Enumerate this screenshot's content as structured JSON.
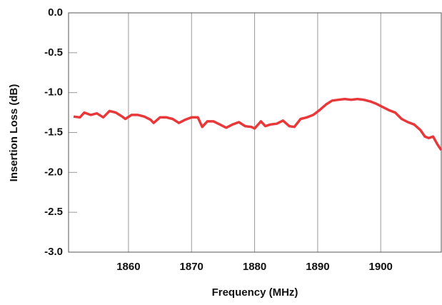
{
  "chart_data": {
    "type": "line",
    "x_label": "Frequency (MHz)",
    "y_label": "Insertion Loss (dB)",
    "xlim": [
      1850.5,
      1909.6
    ],
    "xticks": [
      1860,
      1870,
      1880,
      1890,
      1900
    ],
    "ylim": [
      -3,
      0
    ],
    "yticks": [
      {
        "value": 0,
        "label": "0.0"
      },
      -0.5,
      {
        "value": -1,
        "label": "-1.0"
      },
      -1.5,
      {
        "value": -2,
        "label": "-2.0"
      },
      -2.5,
      {
        "value": -3,
        "label": "-3.0"
      }
    ],
    "grid": "x",
    "series": [
      {
        "color": "#e8383a",
        "x": [
          1851.3,
          1852.3,
          1853,
          1854,
          1855,
          1856,
          1857,
          1858,
          1859,
          1859.5,
          1860.5,
          1861.5,
          1862.5,
          1863.5,
          1864,
          1865,
          1866,
          1867,
          1868,
          1869,
          1870,
          1871,
          1871.7,
          1872.5,
          1873.5,
          1874.5,
          1875.5,
          1876.5,
          1877.5,
          1878.5,
          1879.5,
          1880,
          1881,
          1881.7,
          1882.5,
          1883.5,
          1884.5,
          1885.5,
          1886.3,
          1887.3,
          1888.3,
          1889.3,
          1890.3,
          1891.3,
          1892.3,
          1893.3,
          1894.3,
          1895.3,
          1896.3,
          1897.3,
          1898.3,
          1899.3,
          1900.3,
          1901.3,
          1902.3,
          1903.3,
          1904.3,
          1905.3,
          1906.3,
          1907,
          1907.6,
          1908.3,
          1909,
          1909.6
        ],
        "values": [
          -1.3,
          -1.31,
          -1.25,
          -1.28,
          -1.26,
          -1.31,
          -1.23,
          -1.25,
          -1.3,
          -1.33,
          -1.28,
          -1.28,
          -1.3,
          -1.34,
          -1.38,
          -1.31,
          -1.31,
          -1.33,
          -1.38,
          -1.34,
          -1.31,
          -1.31,
          -1.43,
          -1.36,
          -1.36,
          -1.4,
          -1.44,
          -1.4,
          -1.37,
          -1.42,
          -1.43,
          -1.45,
          -1.36,
          -1.42,
          -1.4,
          -1.39,
          -1.35,
          -1.42,
          -1.43,
          -1.33,
          -1.31,
          -1.28,
          -1.22,
          -1.15,
          -1.1,
          -1.09,
          -1.08,
          -1.09,
          -1.08,
          -1.09,
          -1.11,
          -1.14,
          -1.18,
          -1.22,
          -1.25,
          -1.33,
          -1.37,
          -1.4,
          -1.47,
          -1.55,
          -1.57,
          -1.55,
          -1.65,
          -1.72
        ]
      }
    ]
  }
}
